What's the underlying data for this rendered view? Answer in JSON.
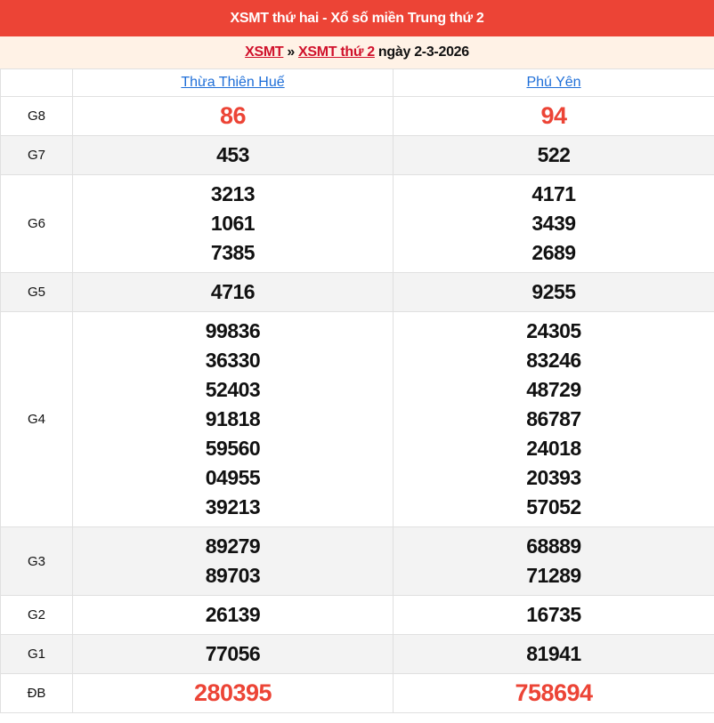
{
  "header": {
    "title": "XSMT thứ hai - Xổ số miền Trung thứ 2"
  },
  "breadcrumb": {
    "link1": "XSMT",
    "sep": "»",
    "link2": "XSMT thứ 2",
    "date_text": "ngày 2-3-2026"
  },
  "colors": {
    "header_bg": "#ec4436",
    "accent_red": "#ec4436",
    "link_blue": "#1f6fd8",
    "sub_bg": "#fff2e6"
  },
  "provinces": [
    "Thừa Thiên Huế",
    "Phú Yên"
  ],
  "prizes": [
    {
      "label": "G8",
      "highlight": true,
      "values": [
        [
          "86"
        ],
        [
          "94"
        ]
      ]
    },
    {
      "label": "G7",
      "values": [
        [
          "453"
        ],
        [
          "522"
        ]
      ]
    },
    {
      "label": "G6",
      "values": [
        [
          "3213",
          "1061",
          "7385"
        ],
        [
          "4171",
          "3439",
          "2689"
        ]
      ]
    },
    {
      "label": "G5",
      "values": [
        [
          "4716"
        ],
        [
          "9255"
        ]
      ]
    },
    {
      "label": "G4",
      "values": [
        [
          "99836",
          "36330",
          "52403",
          "91818",
          "59560",
          "04955",
          "39213"
        ],
        [
          "24305",
          "83246",
          "48729",
          "86787",
          "24018",
          "20393",
          "57052"
        ]
      ]
    },
    {
      "label": "G3",
      "values": [
        [
          "89279",
          "89703"
        ],
        [
          "68889",
          "71289"
        ]
      ]
    },
    {
      "label": "G2",
      "values": [
        [
          "26139"
        ],
        [
          "16735"
        ]
      ]
    },
    {
      "label": "G1",
      "values": [
        [
          "77056"
        ],
        [
          "81941"
        ]
      ]
    },
    {
      "label": "ĐB",
      "highlight": true,
      "values": [
        [
          "280395"
        ],
        [
          "758694"
        ]
      ]
    }
  ]
}
